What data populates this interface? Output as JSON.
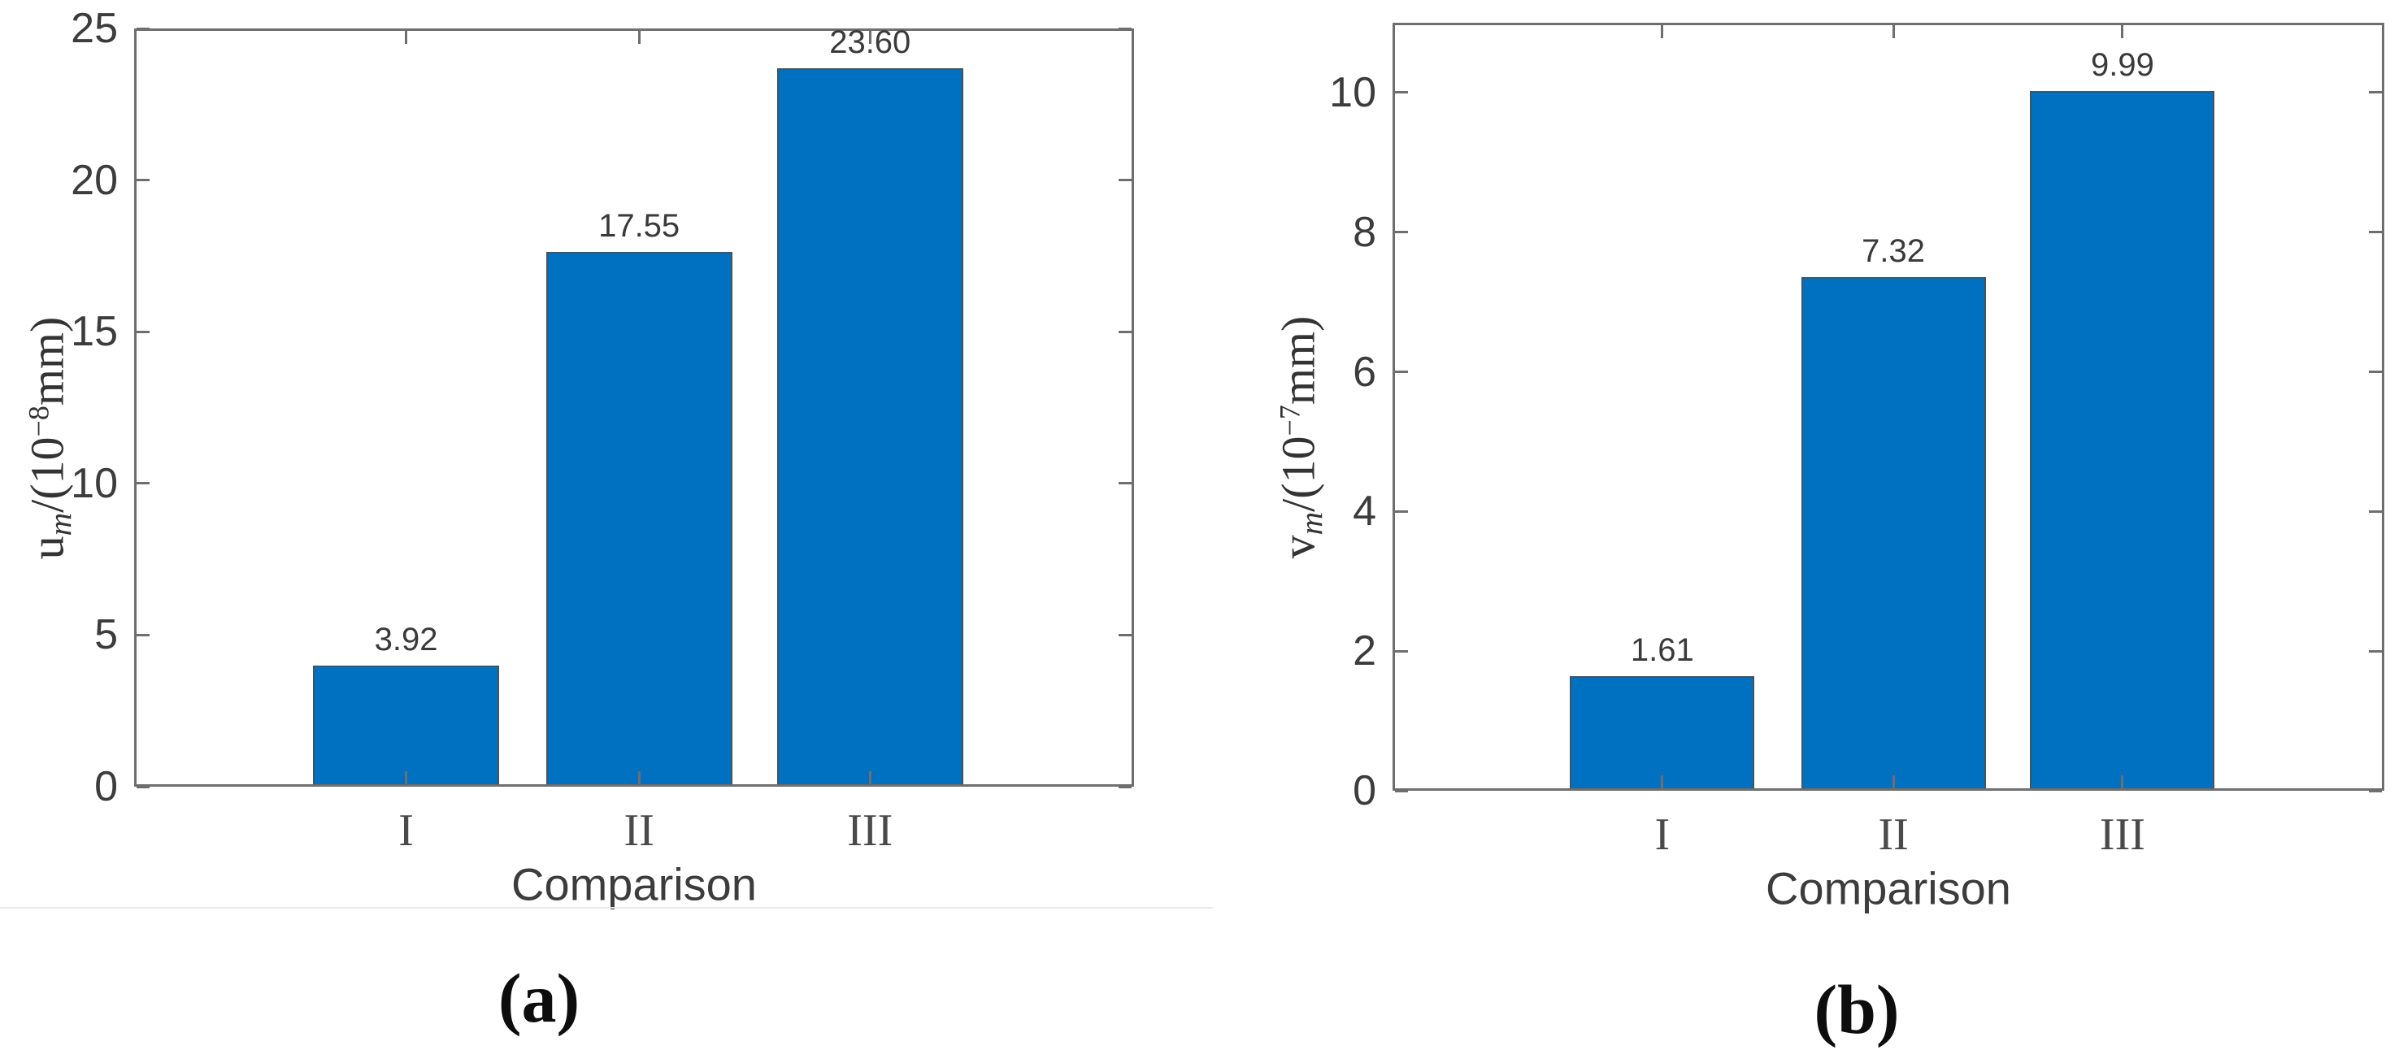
{
  "figure": {
    "background": "#ffffff",
    "bar_color": "#0071c1",
    "axis_color": "#6e6e6e",
    "panel_a_caption": "(a)",
    "panel_b_caption": "(b)"
  },
  "chart_data": [
    {
      "panel": "a",
      "type": "bar",
      "title": "",
      "categories": [
        "I",
        "II",
        "III"
      ],
      "values": [
        3.92,
        17.55,
        23.6
      ],
      "bar_labels": [
        "3.92",
        "17.55",
        "23.60"
      ],
      "xlabel": "Comparison",
      "ylabel": {
        "symbol": "u",
        "symbol_sub": "m",
        "prefix": "/(10",
        "exponent": "−8",
        "suffix": "mm)"
      },
      "yticks": [
        0,
        5,
        10,
        15,
        20,
        25
      ],
      "ylim": [
        0,
        25
      ],
      "grid": false,
      "legend_position": "none",
      "caption": "(a)"
    },
    {
      "panel": "b",
      "type": "bar",
      "title": "",
      "categories": [
        "I",
        "II",
        "III"
      ],
      "values": [
        1.61,
        7.32,
        9.99
      ],
      "bar_labels": [
        "1.61",
        "7.32",
        "9.99"
      ],
      "xlabel": "Comparison",
      "ylabel": {
        "symbol": "v",
        "symbol_sub": "m",
        "prefix": "/(10",
        "exponent": "−7",
        "suffix": "mm)"
      },
      "yticks": [
        0,
        2,
        4,
        6,
        8,
        10
      ],
      "ylim": [
        0,
        11
      ],
      "grid": false,
      "legend_position": "none",
      "caption": "(b)"
    }
  ]
}
